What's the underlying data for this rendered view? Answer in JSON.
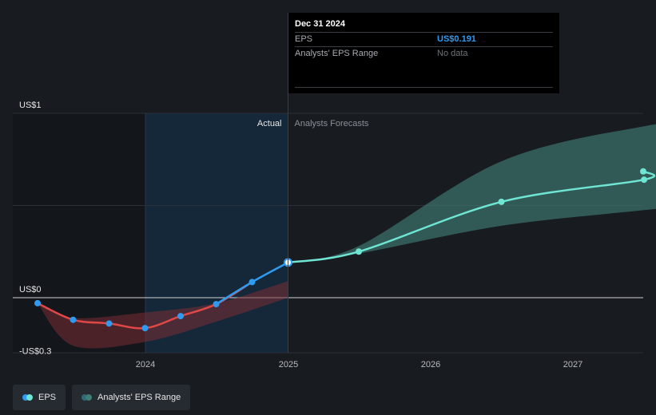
{
  "chart_data": {
    "type": "line",
    "title": "",
    "y_axis_labels": [
      "US$1",
      "US$0",
      "-US$0.3"
    ],
    "x_tick_labels": [
      "2024",
      "2025",
      "2026",
      "2027"
    ],
    "region_labels": {
      "actual": "Actual",
      "forecast": "Analysts Forecasts"
    },
    "ylim": [
      -0.3,
      1.0
    ],
    "series": [
      {
        "name": "EPS",
        "color_actual_negative": "#e04848",
        "color_actual_positive": "#2f9bf0",
        "color_forecast": "#6fe5d4",
        "points": [
          {
            "x": "2023-03-31",
            "y": -0.03
          },
          {
            "x": "2023-06-30",
            "y": -0.12
          },
          {
            "x": "2023-09-30",
            "y": -0.14
          },
          {
            "x": "2023-12-31",
            "y": -0.165
          },
          {
            "x": "2024-03-31",
            "y": -0.1
          },
          {
            "x": "2024-06-30",
            "y": -0.035
          },
          {
            "x": "2024-09-30",
            "y": 0.085
          },
          {
            "x": "2024-12-31",
            "y": 0.191
          },
          {
            "x": "2025-06-30",
            "y": 0.25
          },
          {
            "x": "2026-06-30",
            "y": 0.52
          },
          {
            "x": "2027-06-30",
            "y": 0.64
          }
        ]
      },
      {
        "name": "Analysts' EPS Range",
        "color": "#3f7d75",
        "range": [
          {
            "x": "2024-12-31",
            "low": 0.191,
            "high": 0.191
          },
          {
            "x": "2025-06-30",
            "low": 0.24,
            "high": 0.28
          },
          {
            "x": "2026-06-30",
            "low": 0.39,
            "high": 0.74
          },
          {
            "x": "2027-06-30",
            "low": 0.475,
            "high": 0.93
          }
        ]
      }
    ],
    "past_range": {
      "color": "#7a2e33",
      "range": [
        {
          "x": "2023-03-31",
          "low": -0.03,
          "high": -0.03
        },
        {
          "x": "2023-06-30",
          "low": -0.26,
          "high": -0.11
        },
        {
          "x": "2023-12-31",
          "low": -0.24,
          "high": -0.08
        },
        {
          "x": "2024-06-30",
          "low": -0.13,
          "high": -0.03
        },
        {
          "x": "2024-12-31",
          "low": 0.0,
          "high": 0.09
        }
      ]
    },
    "highlight_x": "2024-12-31"
  },
  "tooltip": {
    "date": "Dec 31 2024",
    "rows": [
      {
        "label": "EPS",
        "value": "US$0.191"
      },
      {
        "label": "Analysts' EPS Range",
        "value": "No data"
      }
    ]
  },
  "legend": [
    {
      "label": "EPS",
      "color_a": "#2f9bf0",
      "color_b": "#6fe5d4"
    },
    {
      "label": "Analysts' EPS Range",
      "color_a": "#2e6b75",
      "color_b": "#3f7d75"
    }
  ]
}
